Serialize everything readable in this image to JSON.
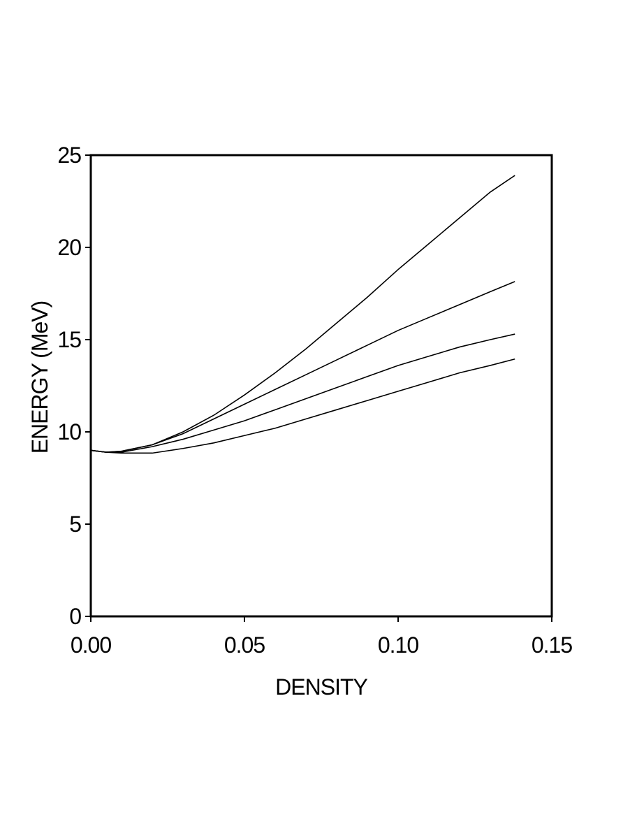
{
  "chart_data": {
    "type": "line",
    "xlabel": "DENSITY",
    "ylabel": "ENERGY  (MeV)",
    "x": [
      0,
      0.005,
      0.01,
      0.02,
      0.03,
      0.04,
      0.05,
      0.06,
      0.07,
      0.08,
      0.09,
      0.1,
      0.11,
      0.12,
      0.13,
      0.138
    ],
    "series": [
      {
        "color": "#000000",
        "values": [
          9.0,
          8.9,
          8.95,
          9.3,
          10.0,
          10.9,
          12.0,
          13.2,
          14.5,
          15.9,
          17.3,
          18.8,
          20.2,
          21.6,
          23.0,
          23.9
        ]
      },
      {
        "color": "#000000",
        "values": [
          9.0,
          8.9,
          8.95,
          9.3,
          9.9,
          10.7,
          11.5,
          12.3,
          13.1,
          13.9,
          14.7,
          15.5,
          16.2,
          16.9,
          17.6,
          18.15
        ]
      },
      {
        "color": "#000000",
        "values": [
          9.0,
          8.9,
          8.9,
          9.2,
          9.6,
          10.1,
          10.6,
          11.2,
          11.8,
          12.4,
          13.0,
          13.6,
          14.1,
          14.6,
          15.0,
          15.3
        ]
      },
      {
        "color": "#000000",
        "values": [
          9.0,
          8.9,
          8.85,
          8.85,
          9.1,
          9.4,
          9.8,
          10.2,
          10.7,
          11.2,
          11.7,
          12.2,
          12.7,
          13.2,
          13.6,
          13.95
        ]
      }
    ],
    "xlim": [
      0,
      0.15
    ],
    "xticks": [
      {
        "value": 0,
        "label": "0.00"
      },
      0.05,
      {
        "value": 0.1,
        "label": "0.10"
      },
      0.15
    ],
    "ylim": [
      0,
      25
    ],
    "yticks": [
      0,
      5,
      10,
      15,
      20,
      25
    ]
  }
}
